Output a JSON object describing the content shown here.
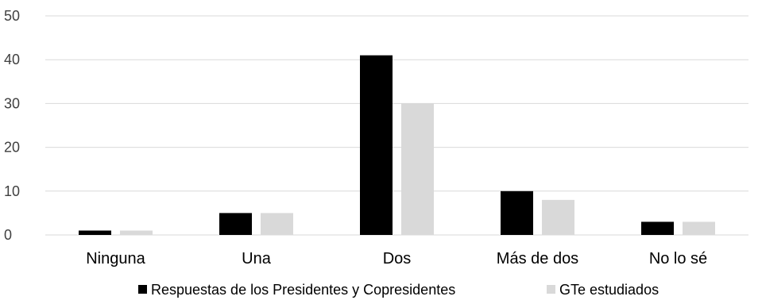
{
  "chart_data": {
    "type": "bar",
    "categories": [
      "Ninguna",
      "Una",
      "Dos",
      "Más de dos",
      "No lo sé"
    ],
    "series": [
      {
        "name": "Respuestas de los Presidentes y Copresidentes",
        "values": [
          1,
          5,
          41,
          10,
          3
        ],
        "color": "#000000"
      },
      {
        "name": "GTe estudiados",
        "values": [
          1,
          5,
          30,
          8,
          3
        ],
        "color": "#d9d9d9"
      }
    ],
    "yticks": [
      "0",
      "10",
      "20",
      "30",
      "40",
      "50"
    ],
    "ylim": [
      0,
      50
    ],
    "grid": true,
    "legend_position": "bottom",
    "gridline_color": "#d9d9d9"
  }
}
